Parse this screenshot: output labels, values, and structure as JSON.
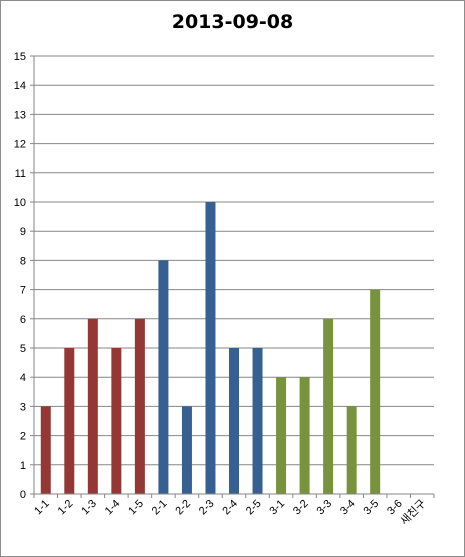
{
  "chart_data": {
    "type": "bar",
    "title": "2013-09-08",
    "xlabel": "",
    "ylabel": "",
    "categories": [
      "1-1",
      "1-2",
      "1-3",
      "1-4",
      "1-5",
      "2-1",
      "2-2",
      "2-3",
      "2-4",
      "2-5",
      "3-1",
      "3-2",
      "3-3",
      "3-4",
      "3-5",
      "3-6",
      "새친구"
    ],
    "values": [
      3,
      5,
      6,
      5,
      6,
      8,
      3,
      10,
      5,
      5,
      4,
      4,
      6,
      3,
      7,
      0,
      0
    ],
    "group_colors": [
      "#953735",
      "#953735",
      "#953735",
      "#953735",
      "#953735",
      "#376092",
      "#376092",
      "#376092",
      "#376092",
      "#376092",
      "#77933c",
      "#77933c",
      "#77933c",
      "#77933c",
      "#77933c",
      "#77933c",
      "#77933c"
    ],
    "ylim": [
      0,
      15
    ],
    "yticks": [
      0,
      1,
      2,
      3,
      4,
      5,
      6,
      7,
      8,
      9,
      10,
      11,
      12,
      13,
      14,
      15
    ],
    "grid": true,
    "legend": "none"
  }
}
